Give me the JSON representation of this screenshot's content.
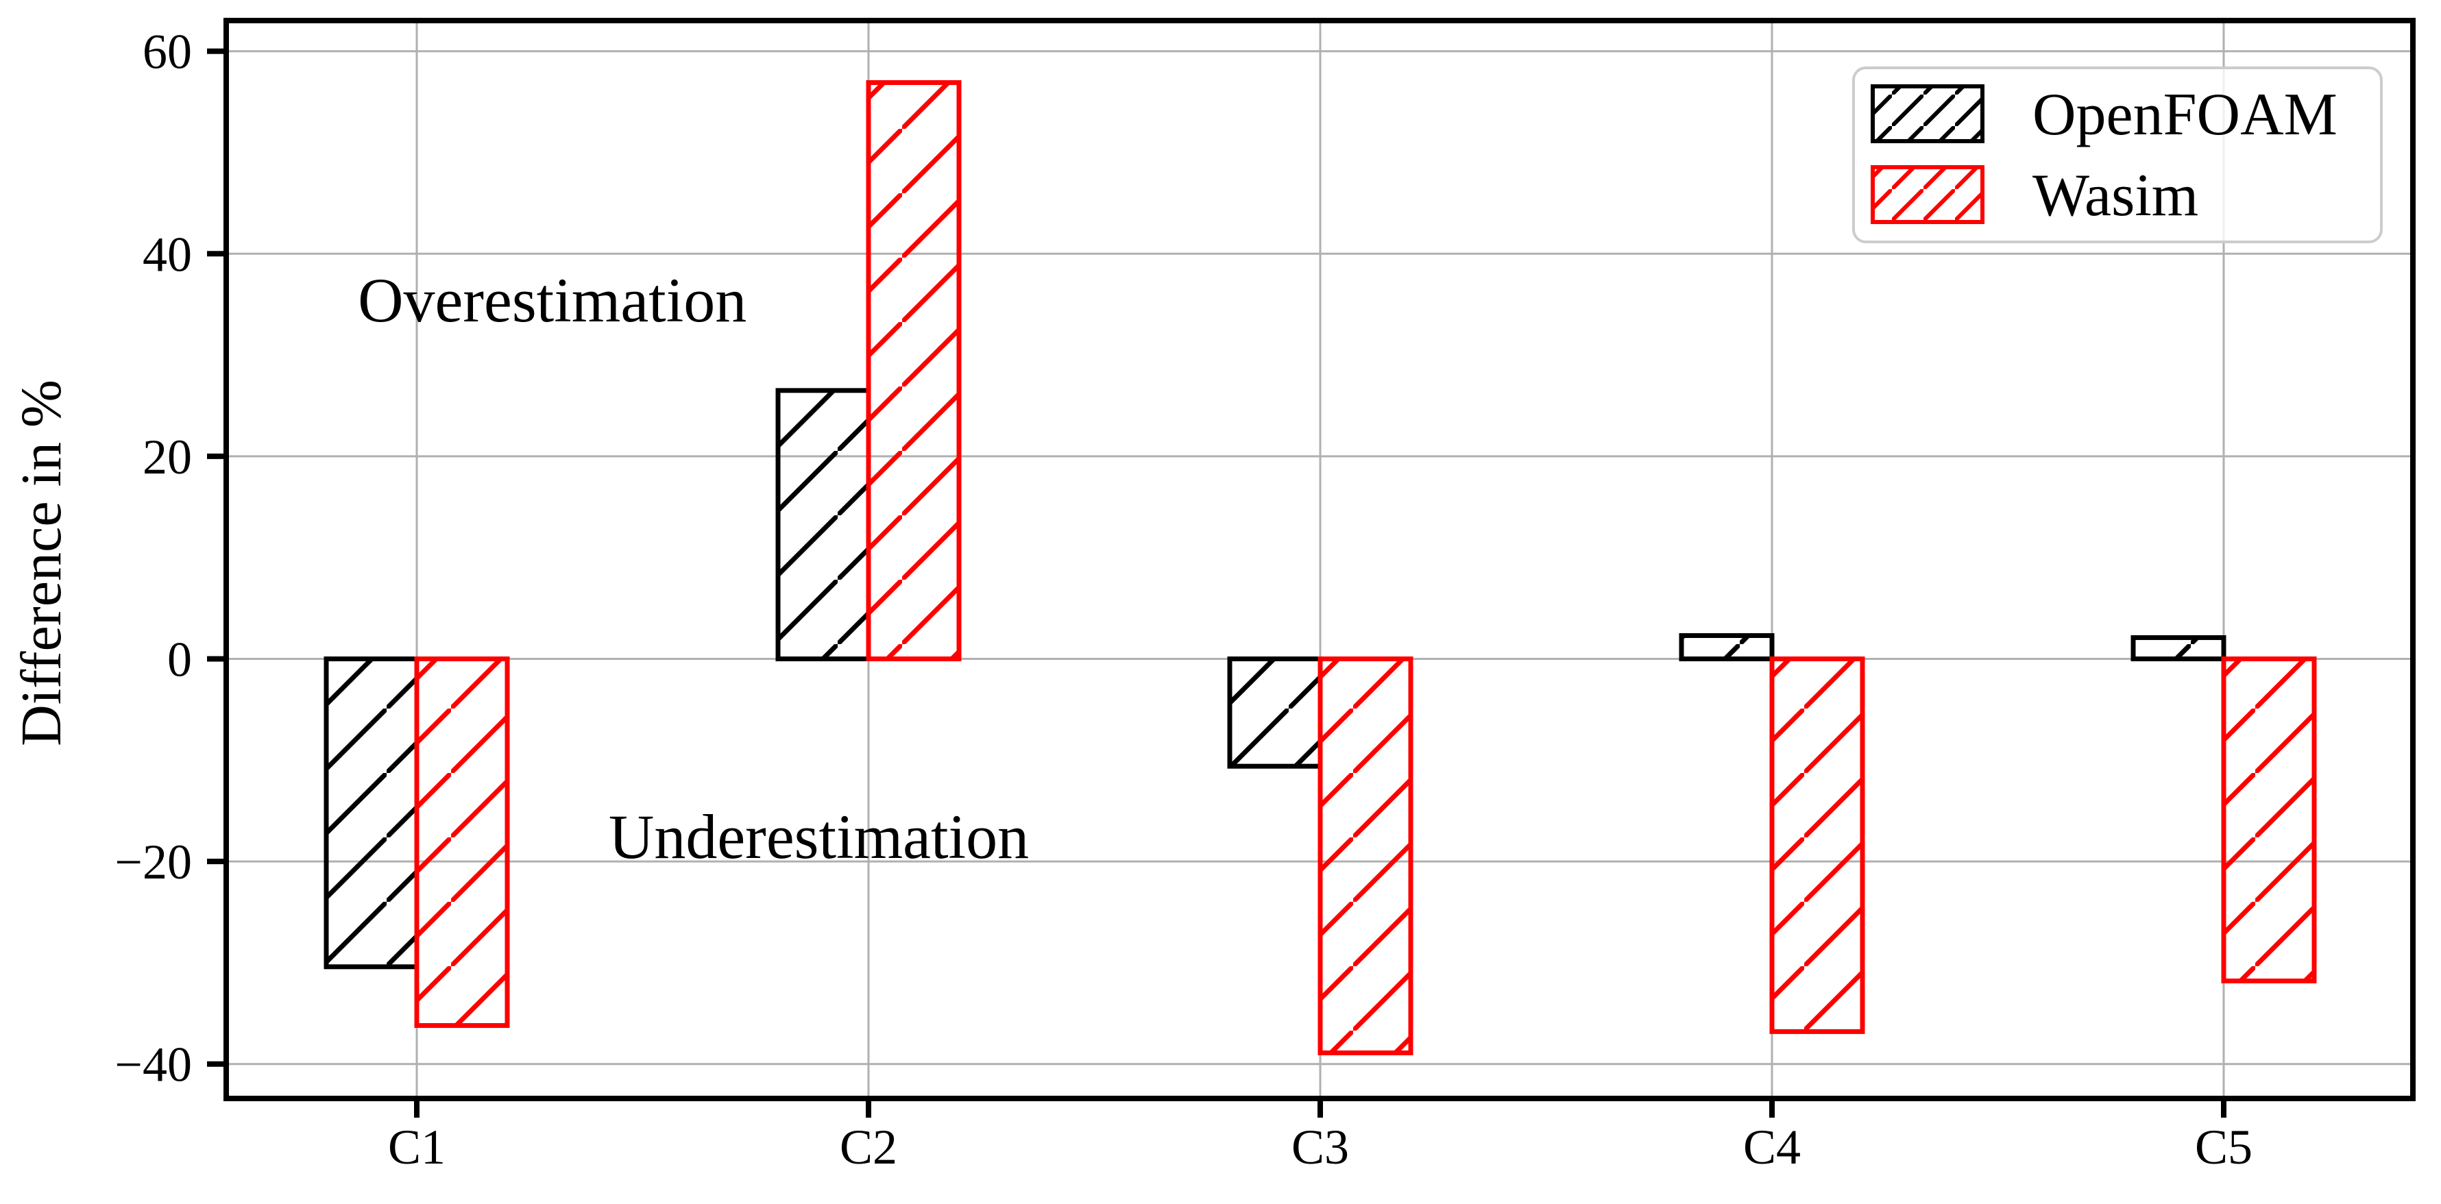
{
  "figure": {
    "background": "#ffffff",
    "grid_color": "#b0b0b0",
    "spine_color": "#000000",
    "text_color": "#000000",
    "legend": {
      "border_color": "#cccccc",
      "fill": "rgba(255,255,255,0.8)"
    }
  },
  "chart_data": {
    "type": "bar",
    "title": "",
    "categories": [
      "C1",
      "C2",
      "C3",
      "C4",
      "C5"
    ],
    "series": [
      {
        "name": "OpenFOAM",
        "color": "#000000",
        "hatch": "/",
        "values": [
          -30.4,
          26.5,
          -10.6,
          2.3,
          2.1
        ]
      },
      {
        "name": "Wasim",
        "color": "#ff0000",
        "hatch": "/",
        "values": [
          -36.2,
          56.9,
          -38.9,
          -36.8,
          -31.8
        ]
      }
    ],
    "xlabel": "",
    "ylabel": "Difference in %",
    "yticks": [
      60,
      40,
      20,
      0,
      -20,
      -40
    ],
    "ylim": [
      -43.4,
      63.0
    ],
    "grid": true,
    "legend_position": "upper right",
    "annotations": [
      {
        "text": "Overestimation",
        "x": 0.3,
        "y": 35.5
      },
      {
        "text": "Underestimation",
        "x": 0.89,
        "y": -17.5
      }
    ]
  }
}
